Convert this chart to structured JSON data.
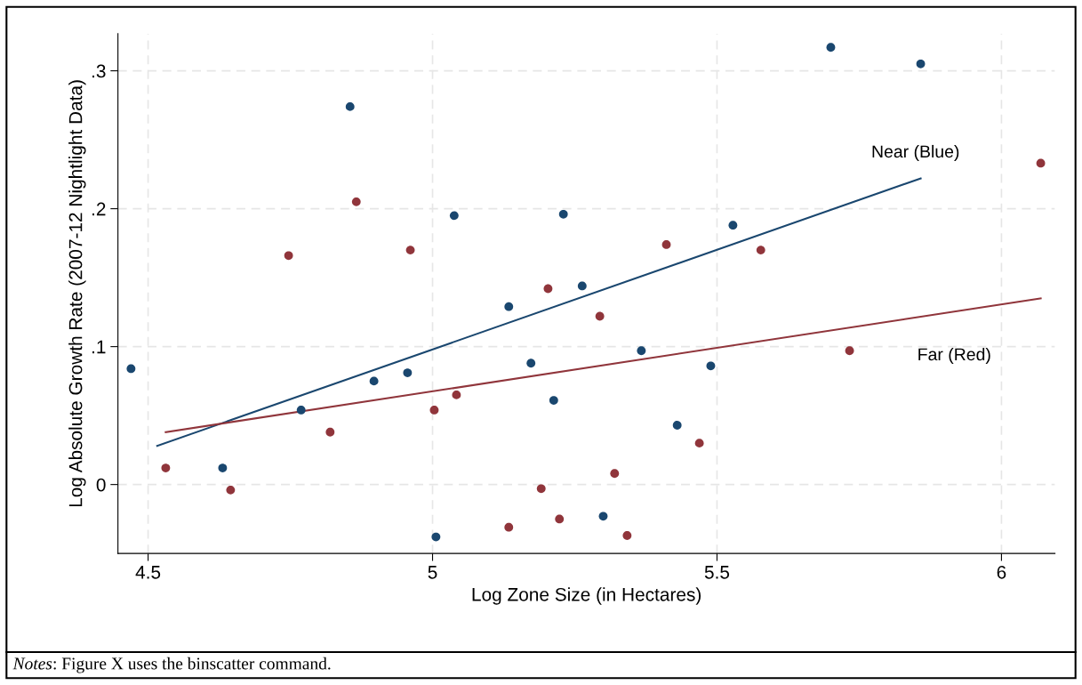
{
  "chart_data": {
    "type": "scatter",
    "xlabel": "Log Zone Size (in Hectares)",
    "ylabel": "Log Absolute Growth Rate (2007-12 Nightlight Data)",
    "xlim": [
      4.447,
      6.094
    ],
    "ylim": [
      -0.05,
      0.327
    ],
    "xticks": [
      4.5,
      5,
      5.5,
      6
    ],
    "yticks": [
      {
        "value": 0,
        "label": "0"
      },
      {
        "value": 0.1,
        "label": ".1"
      },
      {
        "value": 0.2,
        "label": ".2"
      },
      {
        "value": 0.3,
        "label": ".3"
      }
    ],
    "grid": true,
    "legend": false,
    "series": [
      {
        "marker": "circle",
        "color": "#1a476f",
        "x": [
          4.47,
          4.855,
          5.038,
          5.23,
          5.7,
          5.858,
          4.631,
          4.769,
          4.897,
          4.956,
          5.006,
          5.134,
          5.173,
          5.213,
          5.263,
          5.3,
          5.367,
          5.43,
          5.489,
          5.528
        ],
        "values": [
          0.084,
          0.274,
          0.195,
          0.196,
          0.317,
          0.305,
          0.012,
          0.054,
          0.075,
          0.081,
          -0.038,
          0.129,
          0.088,
          0.061,
          0.144,
          -0.023,
          0.097,
          0.043,
          0.086,
          0.188
        ]
      },
      {
        "marker": "circle",
        "color": "#90353b",
        "x": [
          4.531,
          4.645,
          4.747,
          4.82,
          4.866,
          4.961,
          5.003,
          5.042,
          5.134,
          5.191,
          5.203,
          5.223,
          5.294,
          5.32,
          5.342,
          5.411,
          5.469,
          5.577,
          5.733,
          6.069
        ],
        "values": [
          0.012,
          -0.004,
          0.166,
          0.038,
          0.205,
          0.17,
          0.054,
          0.065,
          -0.031,
          -0.003,
          0.142,
          -0.025,
          0.122,
          0.008,
          -0.037,
          0.174,
          0.03,
          0.17,
          0.097,
          0.233
        ]
      },
      {
        "type": "line",
        "marker": "none",
        "name": "Near (Blue)",
        "color": "#1a476f",
        "x": [
          4.516,
          5.858
        ],
        "values": [
          0.028,
          0.222
        ]
      },
      {
        "type": "line",
        "marker": "none",
        "name": "Far (Red)",
        "color": "#90353b",
        "x": [
          4.531,
          6.069
        ],
        "values": [
          0.038,
          0.135
        ]
      }
    ],
    "annotations": [
      "Notes: Figure X uses the binscatter command."
    ]
  }
}
